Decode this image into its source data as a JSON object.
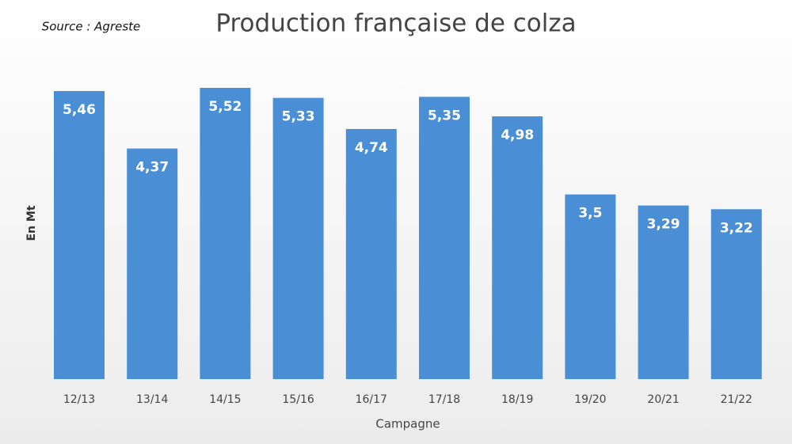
{
  "chart_data": {
    "type": "bar",
    "title": "Production française de colza",
    "source": "Source : Agreste",
    "x_label": "Campagne",
    "y_label": "En Mt",
    "categories": [
      "12/13",
      "13/14",
      "14/15",
      "15/16",
      "16/17",
      "17/18",
      "18/19",
      "19/20",
      "20/21",
      "21/22"
    ],
    "values": [
      5.46,
      4.37,
      5.52,
      5.33,
      4.74,
      5.35,
      4.98,
      3.5,
      3.29,
      3.22
    ],
    "value_labels": [
      "5,46",
      "4,37",
      "5,52",
      "5,33",
      "4,74",
      "5,35",
      "4,98",
      "3,5",
      "3,29",
      "3,22"
    ],
    "color": "#4a8fd6"
  }
}
